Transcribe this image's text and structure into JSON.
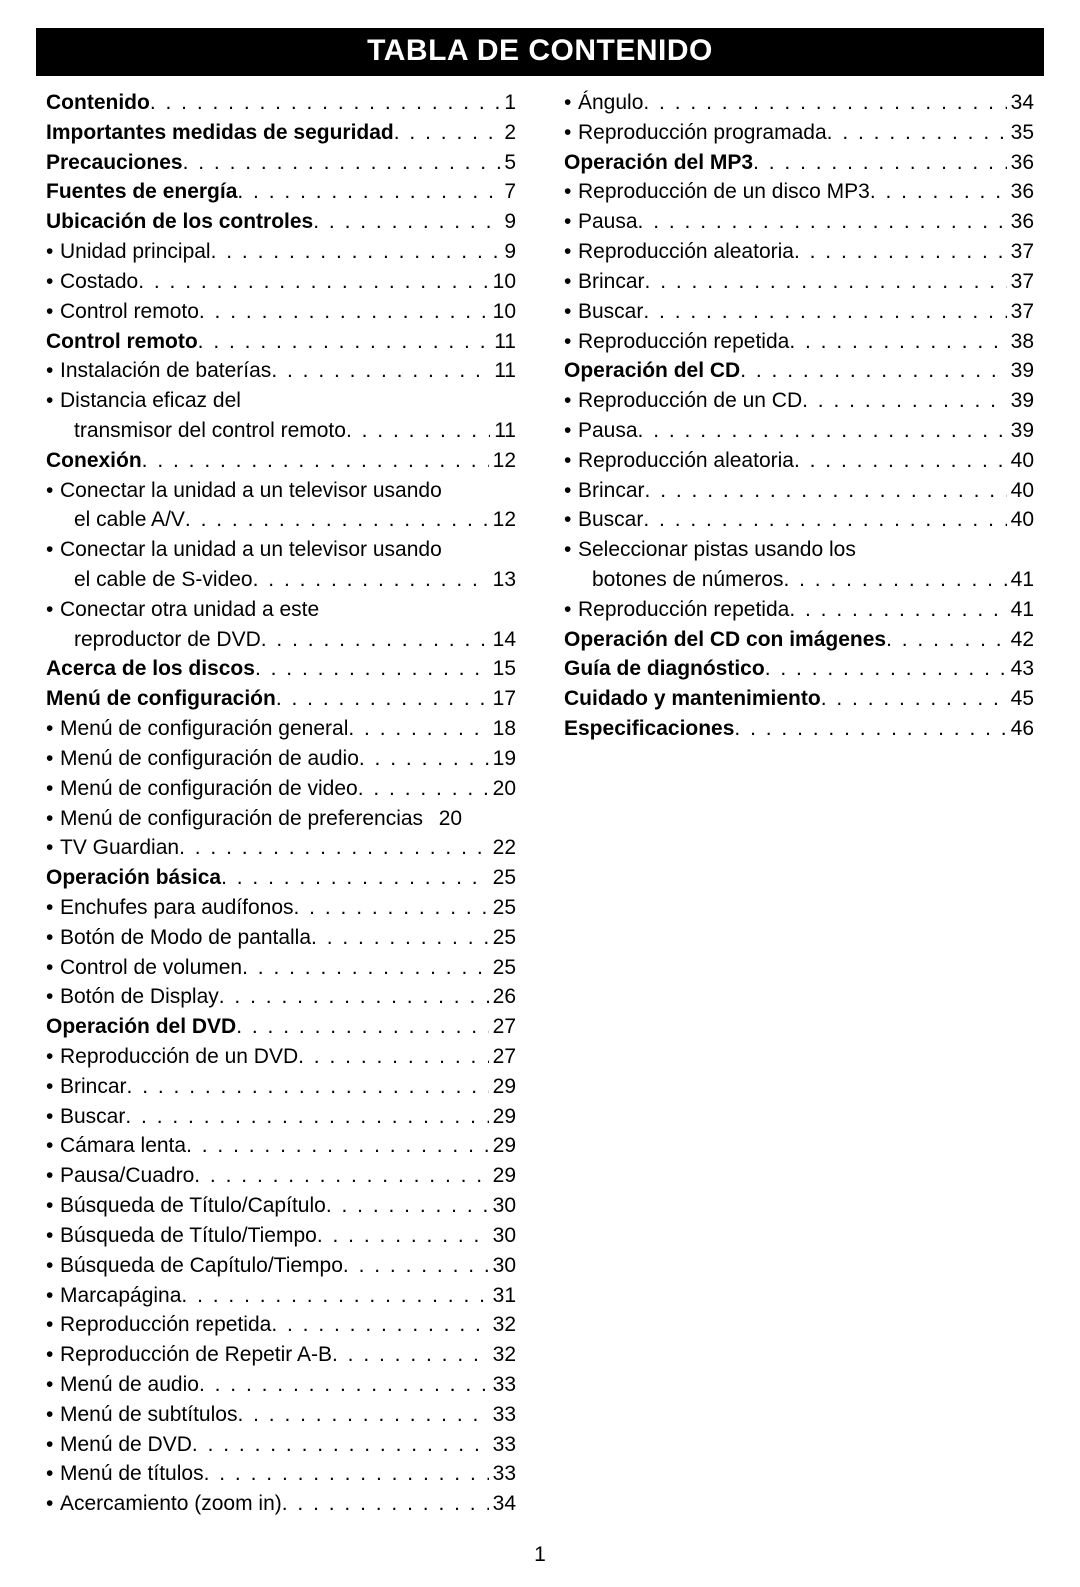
{
  "title": "TABLA DE CONTENIDO",
  "page_number": "1",
  "background_color": "#ffffff",
  "text_color": "#000000",
  "title_bg": "#000000",
  "title_fg": "#ffffff",
  "left_column": [
    {
      "label": "Contenido",
      "page": "1",
      "bold": true,
      "sub": false
    },
    {
      "label": "Importantes medidas de seguridad",
      "page": "2",
      "bold": true,
      "sub": false
    },
    {
      "label": "Precauciones",
      "page": "5",
      "bold": true,
      "sub": false
    },
    {
      "label": "Fuentes de energía",
      "page": "7",
      "bold": true,
      "sub": false
    },
    {
      "label": "Ubicación de los controles",
      "page": "9",
      "bold": true,
      "sub": false
    },
    {
      "label": "Unidad principal",
      "page": "9",
      "bold": false,
      "sub": true
    },
    {
      "label": "Costado",
      "page": "10",
      "bold": false,
      "sub": true
    },
    {
      "label": "Control remoto",
      "page": "10",
      "bold": false,
      "sub": true
    },
    {
      "label": "Control remoto",
      "page": "11",
      "bold": true,
      "sub": false
    },
    {
      "label": "Instalación de baterías",
      "page": "11",
      "bold": false,
      "sub": true
    },
    {
      "label": "Distancia eficaz del",
      "page": "",
      "bold": false,
      "sub": true,
      "no_leader": true
    },
    {
      "label": "transmisor del control remoto",
      "page": "11",
      "bold": false,
      "sub": true,
      "cont": true
    },
    {
      "label": "Conexión",
      "page": "12",
      "bold": true,
      "sub": false
    },
    {
      "label": "Conectar la unidad a un televisor usando",
      "page": "",
      "bold": false,
      "sub": true,
      "no_leader": true
    },
    {
      "label": "el cable A/V",
      "page": "12",
      "bold": false,
      "sub": true,
      "cont": true
    },
    {
      "label": "Conectar la unidad a un televisor usando",
      "page": "",
      "bold": false,
      "sub": true,
      "no_leader": true
    },
    {
      "label": "el cable de S-video",
      "page": "13",
      "bold": false,
      "sub": true,
      "cont": true
    },
    {
      "label": "Conectar otra unidad a este",
      "page": "",
      "bold": false,
      "sub": true,
      "no_leader": true
    },
    {
      "label": "reproductor de DVD",
      "page": "14",
      "bold": false,
      "sub": true,
      "cont": true
    },
    {
      "label": "Acerca de los discos",
      "page": "15",
      "bold": true,
      "sub": false
    },
    {
      "label": "Menú de configuración",
      "page": "17",
      "bold": true,
      "sub": false
    },
    {
      "label": "Menú de configuración general",
      "page": "18",
      "bold": false,
      "sub": true
    },
    {
      "label": "Menú de configuración de audio",
      "page": "19",
      "bold": false,
      "sub": true
    },
    {
      "label": "Menú de configuración de video",
      "page": "20",
      "bold": false,
      "sub": true
    },
    {
      "label": "Menú de configuración de preferencias",
      "page": "20",
      "bold": false,
      "sub": true,
      "tight": true
    },
    {
      "label": "TV Guardian",
      "page": "22",
      "bold": false,
      "sub": true
    },
    {
      "label": "Operación básica",
      "page": "25",
      "bold": true,
      "sub": false
    },
    {
      "label": "Enchufes para audífonos",
      "page": "25",
      "bold": false,
      "sub": true
    },
    {
      "label": "Botón de Modo de pantalla",
      "page": "25",
      "bold": false,
      "sub": true
    },
    {
      "label": "Control de volumen",
      "page": "25",
      "bold": false,
      "sub": true
    },
    {
      "label": "Botón de Display",
      "page": "26",
      "bold": false,
      "sub": true
    },
    {
      "label": "Operación del DVD",
      "page": "27",
      "bold": true,
      "sub": false
    },
    {
      "label": "Reproducción de un DVD",
      "page": "27",
      "bold": false,
      "sub": true
    },
    {
      "label": "Brincar",
      "page": "29",
      "bold": false,
      "sub": true
    },
    {
      "label": "Buscar",
      "page": "29",
      "bold": false,
      "sub": true
    },
    {
      "label": "Cámara lenta",
      "page": "29",
      "bold": false,
      "sub": true
    },
    {
      "label": "Pausa/Cuadro",
      "page": "29",
      "bold": false,
      "sub": true
    },
    {
      "label": "Búsqueda de Título/Capítulo",
      "page": "30",
      "bold": false,
      "sub": true
    },
    {
      "label": "Búsqueda de Título/Tiempo",
      "page": "30",
      "bold": false,
      "sub": true
    },
    {
      "label": "Búsqueda de Capítulo/Tiempo",
      "page": "30",
      "bold": false,
      "sub": true
    },
    {
      "label": "Marcapágina",
      "page": "31",
      "bold": false,
      "sub": true
    },
    {
      "label": "Reproducción repetida",
      "page": "32",
      "bold": false,
      "sub": true
    },
    {
      "label": "Reproducción de Repetir A-B",
      "page": "32",
      "bold": false,
      "sub": true
    },
    {
      "label": "Menú de audio",
      "page": "33",
      "bold": false,
      "sub": true
    },
    {
      "label": "Menú de subtítulos",
      "page": "33",
      "bold": false,
      "sub": true
    },
    {
      "label": "Menú de DVD",
      "page": "33",
      "bold": false,
      "sub": true
    },
    {
      "label": "Menú de títulos",
      "page": "33",
      "bold": false,
      "sub": true
    },
    {
      "label": "Acercamiento (zoom in)",
      "page": "34",
      "bold": false,
      "sub": true
    }
  ],
  "right_column": [
    {
      "label": "Ángulo",
      "page": "34",
      "bold": false,
      "sub": true
    },
    {
      "label": "Reproducción programada",
      "page": "35",
      "bold": false,
      "sub": true
    },
    {
      "label": "Operación del MP3",
      "page": "36",
      "bold": true,
      "sub": false
    },
    {
      "label": "Reproducción de un disco MP3",
      "page": "36",
      "bold": false,
      "sub": true
    },
    {
      "label": "Pausa",
      "page": "36",
      "bold": false,
      "sub": true
    },
    {
      "label": "Reproducción aleatoria",
      "page": "37",
      "bold": false,
      "sub": true
    },
    {
      "label": "Brincar",
      "page": "37",
      "bold": false,
      "sub": true
    },
    {
      "label": "Buscar",
      "page": "37",
      "bold": false,
      "sub": true
    },
    {
      "label": "Reproducción repetida",
      "page": "38",
      "bold": false,
      "sub": true
    },
    {
      "label": "Operación del CD",
      "page": "39",
      "bold": true,
      "sub": false
    },
    {
      "label": "Reproducción de un CD",
      "page": "39",
      "bold": false,
      "sub": true
    },
    {
      "label": "Pausa",
      "page": "39",
      "bold": false,
      "sub": true
    },
    {
      "label": "Reproducción aleatoria",
      "page": "40",
      "bold": false,
      "sub": true
    },
    {
      "label": "Brincar",
      "page": "40",
      "bold": false,
      "sub": true
    },
    {
      "label": "Buscar",
      "page": "40",
      "bold": false,
      "sub": true
    },
    {
      "label": "Seleccionar pistas usando los",
      "page": "",
      "bold": false,
      "sub": true,
      "no_leader": true
    },
    {
      "label": "botones de números",
      "page": "41",
      "bold": false,
      "sub": true,
      "cont": true
    },
    {
      "label": "Reproducción repetida",
      "page": "41",
      "bold": false,
      "sub": true
    },
    {
      "label": "Operación del CD con imágenes",
      "page": "42",
      "bold": true,
      "sub": false
    },
    {
      "label": "Guía de diagnóstico",
      "page": "43",
      "bold": true,
      "sub": false
    },
    {
      "label": "Cuidado y mantenimiento",
      "page": "45",
      "bold": true,
      "sub": false
    },
    {
      "label": "Especificaciones",
      "page": "46",
      "bold": true,
      "sub": false
    }
  ]
}
